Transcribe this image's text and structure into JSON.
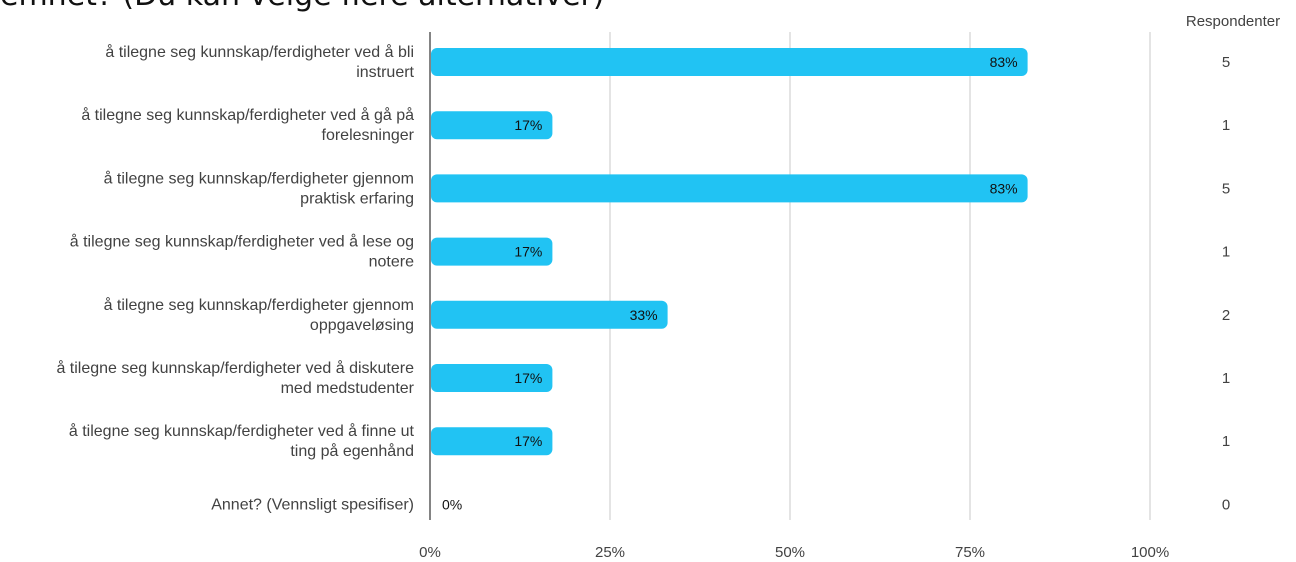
{
  "title_text": "emnet? (Du kan velge flere alternativer)",
  "chart_data": {
    "type": "bar",
    "orientation": "horizontal",
    "respondents_header": "Respondenter",
    "categories": [
      [
        "å tilegne seg kunnskap/ferdigheter ved å bli",
        "instruert"
      ],
      [
        "å tilegne seg kunnskap/ferdigheter ved å gå på",
        "forelesninger"
      ],
      [
        "å tilegne seg kunnskap/ferdigheter gjennom",
        "praktisk erfaring"
      ],
      [
        "å tilegne seg kunnskap/ferdigheter ved å lese og",
        "notere"
      ],
      [
        "å tilegne seg kunnskap/ferdigheter gjennom",
        "oppgaveløsing"
      ],
      [
        "å tilegne seg kunnskap/ferdigheter ved å diskutere",
        "med medstudenter"
      ],
      [
        "å tilegne seg kunnskap/ferdigheter ved å finne ut",
        "ting på egenhånd"
      ],
      [
        "Annet? (Vennsligt spesifiser)"
      ]
    ],
    "values": [
      83,
      17,
      83,
      17,
      33,
      17,
      17,
      0
    ],
    "value_labels": [
      "83%",
      "17%",
      "83%",
      "17%",
      "33%",
      "17%",
      "17%",
      "0%"
    ],
    "respondents": [
      "5",
      "1",
      "5",
      "1",
      "2",
      "1",
      "1",
      "0"
    ],
    "xlim": [
      0,
      100
    ],
    "xticks": [
      "0%",
      "25%",
      "50%",
      "75%",
      "100%"
    ],
    "grid": true,
    "bar_color": "#21c3f3"
  }
}
